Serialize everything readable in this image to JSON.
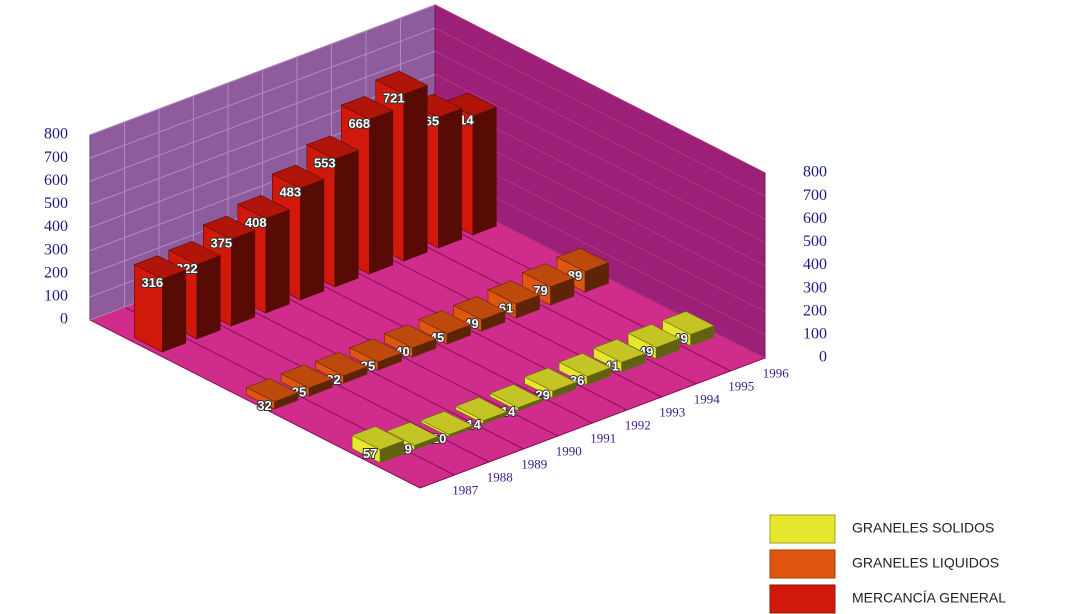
{
  "chart_data": {
    "type": "bar3d",
    "categories": [
      "1987",
      "1988",
      "1989",
      "1990",
      "1991",
      "1992",
      "1993",
      "1994",
      "1995",
      "1996"
    ],
    "series": [
      {
        "name": "GRANELES SOLIDOS",
        "color": "#e6e62c",
        "values": [
          57,
          19,
          10,
          14,
          14,
          29,
          36,
          41,
          49,
          49
        ]
      },
      {
        "name": "GRANELES LIQUIDOS",
        "color": "#e0560e",
        "values": [
          32,
          35,
          32,
          35,
          40,
          45,
          49,
          61,
          79,
          89
        ]
      },
      {
        "name": "MERCANCÍA GENERAL",
        "color": "#d0190a",
        "values": [
          316,
          322,
          375,
          408,
          483,
          553,
          668,
          721,
          565,
          514
        ]
      }
    ],
    "ylim": [
      0,
      800
    ],
    "yticks": [
      0,
      100,
      200,
      300,
      400,
      500,
      600,
      700,
      800
    ],
    "grid": true
  }
}
